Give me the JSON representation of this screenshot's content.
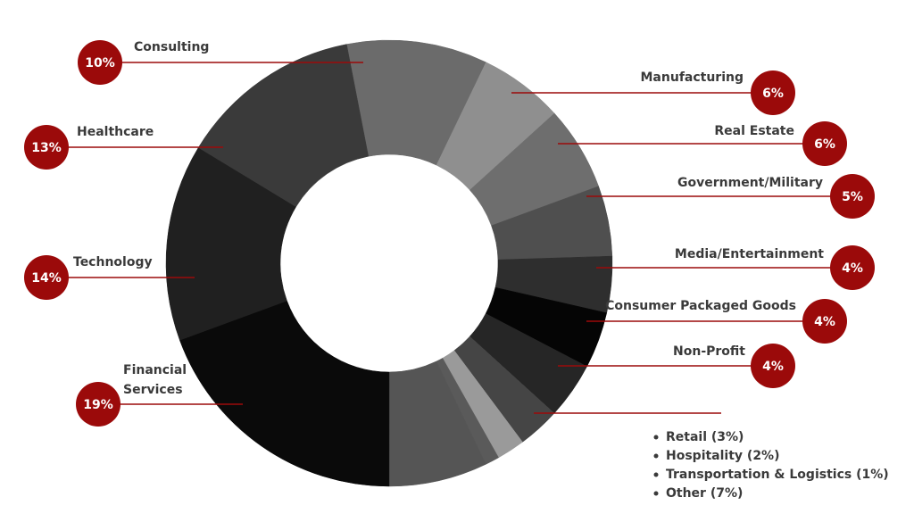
{
  "chart_data": {
    "type": "donut",
    "categories": [
      "Consulting",
      "Manufacturing",
      "Real Estate",
      "Government/Military",
      "Media/Entertainment",
      "Consumer Packaged Goods",
      "Non-Profit",
      "Retail (3%)",
      "Hospitality (2%)",
      "Transportation & Logistics (1%)",
      "Other (7%)",
      "Financial Services",
      "Technology",
      "Healthcare"
    ],
    "values": [
      10,
      6,
      6,
      5,
      4,
      4,
      4,
      3,
      2,
      1,
      7,
      19,
      14,
      13
    ],
    "value_labels": [
      "10%",
      "6%",
      "6%",
      "5%",
      "4%",
      "4%",
      "4%",
      null,
      null,
      null,
      null,
      "19%",
      "14%",
      "13%"
    ],
    "colors": [
      "#6b6b6b",
      "#8f8f8f",
      "#6e6e6e",
      "#4f4f4f",
      "#2e2e2e",
      "#050505",
      "#262626",
      "#454545",
      "#9a9a9a",
      "#5a5a5a",
      "#555555",
      "#0a0a0a",
      "#202020",
      "#3a3a3a"
    ],
    "label_color": "#9b0a0a"
  }
}
